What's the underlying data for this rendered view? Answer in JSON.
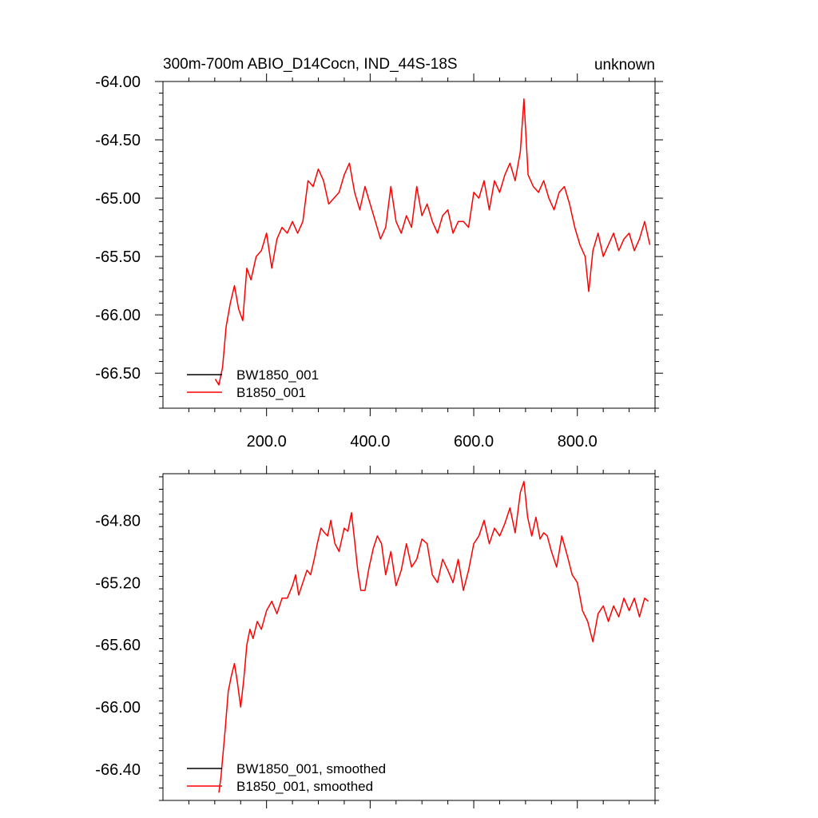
{
  "chart_data": [
    {
      "type": "line",
      "title": "300m-700m ABIO_D14Cocn, IND_44S-18S",
      "title_right": "unknown",
      "xlabel": "",
      "ylabel": "",
      "xlim": [
        0,
        950
      ],
      "ylim": [
        -66.8,
        -64.0
      ],
      "xticks": [
        {
          "v": 200,
          "label": "200.0"
        },
        {
          "v": 400,
          "label": "400.0"
        },
        {
          "v": 600,
          "label": "600.0"
        },
        {
          "v": 800,
          "label": "800.0"
        }
      ],
      "yticks": [
        {
          "v": -64.0,
          "label": "-64.00"
        },
        {
          "v": -64.5,
          "label": "-64.50"
        },
        {
          "v": -65.0,
          "label": "-65.00"
        },
        {
          "v": -65.5,
          "label": "-65.50"
        },
        {
          "v": -66.0,
          "label": "-66.00"
        },
        {
          "v": -66.5,
          "label": "-66.50"
        }
      ],
      "legend": {
        "placement": "bottom-left",
        "entries": [
          {
            "name": "BW1850_001",
            "color": "#000000"
          },
          {
            "name": "B1850_001",
            "color": "#ff0000"
          }
        ]
      },
      "series": [
        {
          "name": "B1850_001",
          "color": "#ff0000",
          "x": [
            101,
            108,
            115,
            122,
            130,
            138,
            146,
            154,
            162,
            170,
            180,
            190,
            200,
            210,
            220,
            230,
            240,
            250,
            260,
            270,
            280,
            290,
            300,
            310,
            320,
            330,
            340,
            350,
            360,
            370,
            380,
            390,
            400,
            410,
            420,
            430,
            440,
            450,
            460,
            470,
            480,
            490,
            500,
            510,
            520,
            530,
            540,
            550,
            560,
            570,
            580,
            590,
            600,
            610,
            620,
            630,
            640,
            650,
            660,
            670,
            680,
            690,
            697,
            705,
            715,
            725,
            735,
            745,
            755,
            765,
            775,
            785,
            795,
            805,
            815,
            822,
            830,
            840,
            850,
            860,
            870,
            880,
            890,
            900,
            910,
            920,
            930,
            940
          ],
          "y": [
            -66.55,
            -66.6,
            -66.45,
            -66.1,
            -65.9,
            -65.75,
            -65.95,
            -66.05,
            -65.6,
            -65.7,
            -65.5,
            -65.45,
            -65.3,
            -65.6,
            -65.35,
            -65.25,
            -65.3,
            -65.2,
            -65.3,
            -65.2,
            -64.85,
            -64.9,
            -64.75,
            -64.85,
            -65.05,
            -65.0,
            -64.95,
            -64.8,
            -64.7,
            -64.95,
            -65.1,
            -64.9,
            -65.05,
            -65.2,
            -65.35,
            -65.25,
            -64.9,
            -65.2,
            -65.3,
            -65.15,
            -65.25,
            -64.9,
            -65.15,
            -65.05,
            -65.2,
            -65.3,
            -65.15,
            -65.1,
            -65.3,
            -65.2,
            -65.2,
            -65.25,
            -64.95,
            -65.0,
            -64.85,
            -65.1,
            -64.85,
            -64.95,
            -64.8,
            -64.7,
            -64.85,
            -64.6,
            -64.15,
            -64.8,
            -64.9,
            -64.95,
            -64.85,
            -65.0,
            -65.1,
            -64.95,
            -64.9,
            -65.05,
            -65.25,
            -65.4,
            -65.5,
            -65.8,
            -65.45,
            -65.3,
            -65.5,
            -65.4,
            -65.3,
            -65.45,
            -65.35,
            -65.3,
            -65.45,
            -65.35,
            -65.2,
            -65.4
          ]
        }
      ]
    },
    {
      "type": "line",
      "title": "",
      "xlabel": "",
      "ylabel": "",
      "xlim": [
        0,
        950
      ],
      "ylim": [
        -66.6,
        -64.5
      ],
      "xticks": [
        {
          "v": 200,
          "label": ""
        },
        {
          "v": 400,
          "label": ""
        },
        {
          "v": 600,
          "label": ""
        },
        {
          "v": 800,
          "label": ""
        }
      ],
      "yticks": [
        {
          "v": -64.8,
          "label": "-64.80"
        },
        {
          "v": -65.2,
          "label": "-65.20"
        },
        {
          "v": -65.6,
          "label": "-65.60"
        },
        {
          "v": -66.0,
          "label": "-66.00"
        },
        {
          "v": -66.4,
          "label": "-66.40"
        }
      ],
      "legend": {
        "placement": "bottom-left",
        "entries": [
          {
            "name": "BW1850_001, smoothed",
            "color": "#000000"
          },
          {
            "name": "B1850_001, smoothed",
            "color": "#ff0000"
          }
        ]
      },
      "series": [
        {
          "name": "B1850_001, smoothed",
          "color": "#ff0000",
          "x": [
            108,
            112,
            116,
            120,
            126,
            132,
            138,
            144,
            150,
            156,
            162,
            168,
            174,
            182,
            190,
            200,
            210,
            220,
            230,
            240,
            250,
            256,
            262,
            270,
            278,
            285,
            292,
            298,
            305,
            312,
            318,
            324,
            332,
            340,
            350,
            357,
            364,
            370,
            376,
            382,
            390,
            398,
            406,
            414,
            422,
            430,
            440,
            450,
            460,
            470,
            480,
            490,
            500,
            510,
            520,
            530,
            540,
            550,
            560,
            570,
            580,
            590,
            600,
            610,
            620,
            630,
            640,
            650,
            660,
            670,
            680,
            690,
            697,
            704,
            712,
            720,
            728,
            735,
            742,
            750,
            760,
            770,
            780,
            790,
            800,
            810,
            820,
            830,
            840,
            850,
            860,
            870,
            880,
            890,
            900,
            910,
            920,
            930,
            937
          ],
          "y": [
            -66.55,
            -66.45,
            -66.3,
            -66.15,
            -65.9,
            -65.8,
            -65.72,
            -65.85,
            -66.0,
            -65.82,
            -65.6,
            -65.5,
            -65.56,
            -65.45,
            -65.5,
            -65.38,
            -65.32,
            -65.4,
            -65.3,
            -65.3,
            -65.22,
            -65.15,
            -65.28,
            -65.2,
            -65.12,
            -65.15,
            -65.05,
            -64.95,
            -64.85,
            -64.88,
            -64.9,
            -64.8,
            -64.95,
            -65.0,
            -64.85,
            -64.87,
            -64.75,
            -64.93,
            -65.12,
            -65.25,
            -65.25,
            -65.1,
            -64.98,
            -64.9,
            -64.95,
            -65.15,
            -65.0,
            -65.22,
            -65.12,
            -64.95,
            -65.1,
            -65.05,
            -64.92,
            -64.95,
            -65.15,
            -65.2,
            -65.05,
            -65.12,
            -65.2,
            -65.05,
            -65.25,
            -65.12,
            -64.95,
            -64.9,
            -64.8,
            -64.95,
            -64.85,
            -64.9,
            -64.82,
            -64.72,
            -64.88,
            -64.62,
            -64.55,
            -64.78,
            -64.9,
            -64.78,
            -64.92,
            -64.88,
            -64.9,
            -65.0,
            -65.1,
            -64.9,
            -65.02,
            -65.15,
            -65.2,
            -65.38,
            -65.45,
            -65.58,
            -65.4,
            -65.35,
            -65.45,
            -65.35,
            -65.42,
            -65.3,
            -65.38,
            -65.3,
            -65.42,
            -65.3,
            -65.32
          ]
        }
      ]
    }
  ]
}
